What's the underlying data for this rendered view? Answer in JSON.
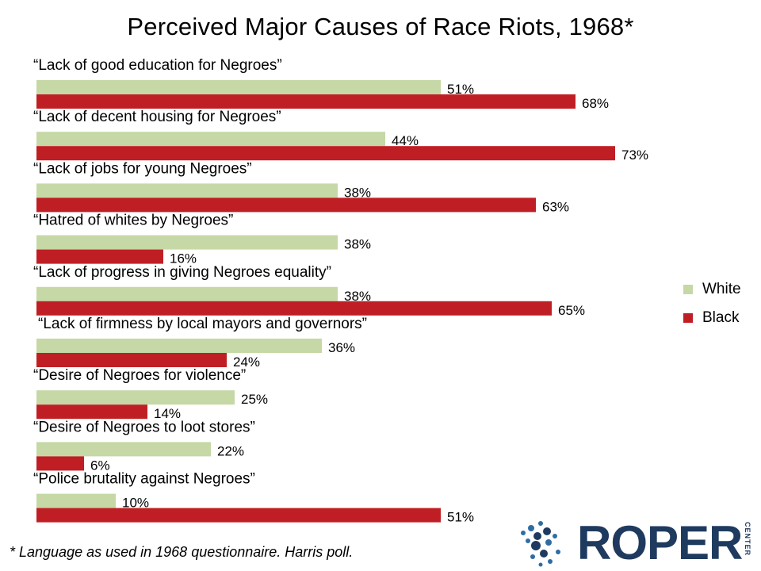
{
  "chart_data": {
    "type": "bar",
    "orientation": "horizontal",
    "title": "Perceived Major Causes of  Race Riots, 1968*",
    "categories": [
      "“Lack of good education for Negroes”",
      "“Lack of decent housing for Negroes”",
      "“Lack of jobs for young Negroes”",
      "“Hatred of whites by Negroes”",
      "“Lack of progress in giving Negroes equality”",
      "“Lack of firmness by local mayors and governors”",
      "“Desire of Negroes for violence”",
      "“Desire of Negroes to loot stores”",
      "“Police brutality against Negroes”"
    ],
    "series": [
      {
        "name": "White",
        "color": "#c5d8a6",
        "values": [
          51,
          44,
          38,
          38,
          38,
          36,
          25,
          22,
          10
        ]
      },
      {
        "name": "Black",
        "color": "#bf1f24",
        "values": [
          68,
          73,
          63,
          16,
          65,
          24,
          14,
          6,
          51
        ]
      }
    ],
    "value_format": "percent",
    "xlim": [
      0,
      100
    ],
    "grid": false,
    "legend_position": "right"
  },
  "footnote": "* Language  as used in 1968 questionnaire.  Harris poll.",
  "logo": {
    "word": "ROPER",
    "sub": "CENTER"
  }
}
